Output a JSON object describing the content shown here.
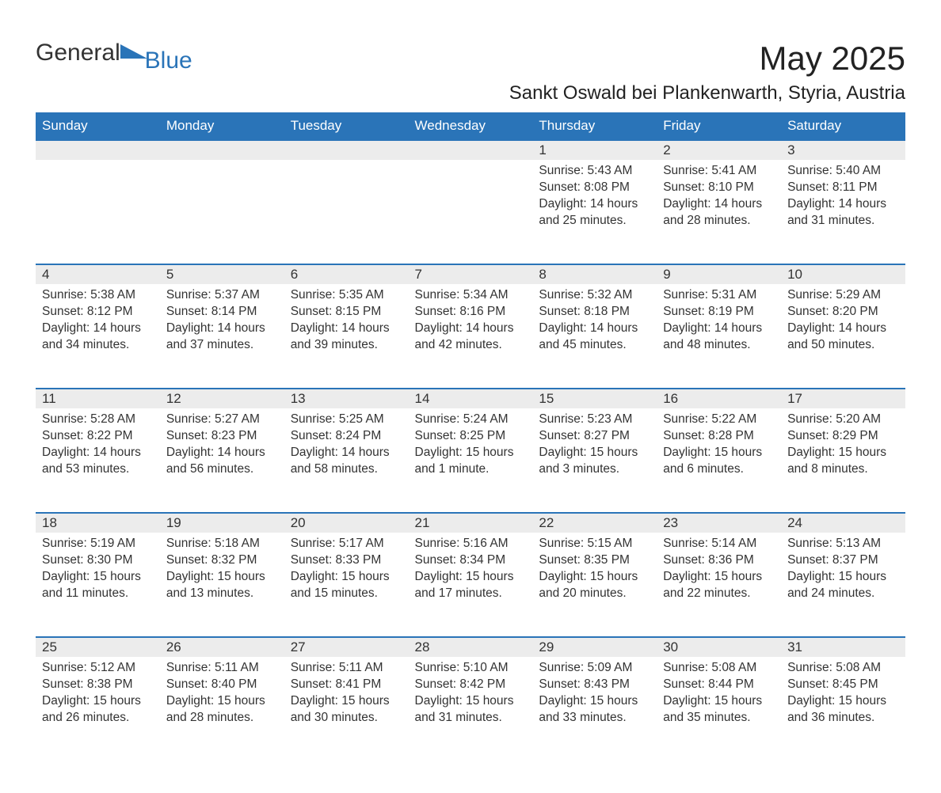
{
  "logo": {
    "general": "General",
    "blue": "Blue",
    "shape_color": "#2a74b8"
  },
  "title": "May 2025",
  "location": "Sankt Oswald bei Plankenwarth, Styria, Austria",
  "colors": {
    "header_bg": "#2a74b8",
    "header_text": "#ffffff",
    "daynum_bg": "#ececec",
    "body_text": "#333333",
    "page_bg": "#ffffff"
  },
  "weekdays": [
    "Sunday",
    "Monday",
    "Tuesday",
    "Wednesday",
    "Thursday",
    "Friday",
    "Saturday"
  ],
  "weeks": [
    [
      null,
      null,
      null,
      null,
      {
        "n": "1",
        "sunrise": "Sunrise: 5:43 AM",
        "sunset": "Sunset: 8:08 PM",
        "daylight": "Daylight: 14 hours and 25 minutes."
      },
      {
        "n": "2",
        "sunrise": "Sunrise: 5:41 AM",
        "sunset": "Sunset: 8:10 PM",
        "daylight": "Daylight: 14 hours and 28 minutes."
      },
      {
        "n": "3",
        "sunrise": "Sunrise: 5:40 AM",
        "sunset": "Sunset: 8:11 PM",
        "daylight": "Daylight: 14 hours and 31 minutes."
      }
    ],
    [
      {
        "n": "4",
        "sunrise": "Sunrise: 5:38 AM",
        "sunset": "Sunset: 8:12 PM",
        "daylight": "Daylight: 14 hours and 34 minutes."
      },
      {
        "n": "5",
        "sunrise": "Sunrise: 5:37 AM",
        "sunset": "Sunset: 8:14 PM",
        "daylight": "Daylight: 14 hours and 37 minutes."
      },
      {
        "n": "6",
        "sunrise": "Sunrise: 5:35 AM",
        "sunset": "Sunset: 8:15 PM",
        "daylight": "Daylight: 14 hours and 39 minutes."
      },
      {
        "n": "7",
        "sunrise": "Sunrise: 5:34 AM",
        "sunset": "Sunset: 8:16 PM",
        "daylight": "Daylight: 14 hours and 42 minutes."
      },
      {
        "n": "8",
        "sunrise": "Sunrise: 5:32 AM",
        "sunset": "Sunset: 8:18 PM",
        "daylight": "Daylight: 14 hours and 45 minutes."
      },
      {
        "n": "9",
        "sunrise": "Sunrise: 5:31 AM",
        "sunset": "Sunset: 8:19 PM",
        "daylight": "Daylight: 14 hours and 48 minutes."
      },
      {
        "n": "10",
        "sunrise": "Sunrise: 5:29 AM",
        "sunset": "Sunset: 8:20 PM",
        "daylight": "Daylight: 14 hours and 50 minutes."
      }
    ],
    [
      {
        "n": "11",
        "sunrise": "Sunrise: 5:28 AM",
        "sunset": "Sunset: 8:22 PM",
        "daylight": "Daylight: 14 hours and 53 minutes."
      },
      {
        "n": "12",
        "sunrise": "Sunrise: 5:27 AM",
        "sunset": "Sunset: 8:23 PM",
        "daylight": "Daylight: 14 hours and 56 minutes."
      },
      {
        "n": "13",
        "sunrise": "Sunrise: 5:25 AM",
        "sunset": "Sunset: 8:24 PM",
        "daylight": "Daylight: 14 hours and 58 minutes."
      },
      {
        "n": "14",
        "sunrise": "Sunrise: 5:24 AM",
        "sunset": "Sunset: 8:25 PM",
        "daylight": "Daylight: 15 hours and 1 minute."
      },
      {
        "n": "15",
        "sunrise": "Sunrise: 5:23 AM",
        "sunset": "Sunset: 8:27 PM",
        "daylight": "Daylight: 15 hours and 3 minutes."
      },
      {
        "n": "16",
        "sunrise": "Sunrise: 5:22 AM",
        "sunset": "Sunset: 8:28 PM",
        "daylight": "Daylight: 15 hours and 6 minutes."
      },
      {
        "n": "17",
        "sunrise": "Sunrise: 5:20 AM",
        "sunset": "Sunset: 8:29 PM",
        "daylight": "Daylight: 15 hours and 8 minutes."
      }
    ],
    [
      {
        "n": "18",
        "sunrise": "Sunrise: 5:19 AM",
        "sunset": "Sunset: 8:30 PM",
        "daylight": "Daylight: 15 hours and 11 minutes."
      },
      {
        "n": "19",
        "sunrise": "Sunrise: 5:18 AM",
        "sunset": "Sunset: 8:32 PM",
        "daylight": "Daylight: 15 hours and 13 minutes."
      },
      {
        "n": "20",
        "sunrise": "Sunrise: 5:17 AM",
        "sunset": "Sunset: 8:33 PM",
        "daylight": "Daylight: 15 hours and 15 minutes."
      },
      {
        "n": "21",
        "sunrise": "Sunrise: 5:16 AM",
        "sunset": "Sunset: 8:34 PM",
        "daylight": "Daylight: 15 hours and 17 minutes."
      },
      {
        "n": "22",
        "sunrise": "Sunrise: 5:15 AM",
        "sunset": "Sunset: 8:35 PM",
        "daylight": "Daylight: 15 hours and 20 minutes."
      },
      {
        "n": "23",
        "sunrise": "Sunrise: 5:14 AM",
        "sunset": "Sunset: 8:36 PM",
        "daylight": "Daylight: 15 hours and 22 minutes."
      },
      {
        "n": "24",
        "sunrise": "Sunrise: 5:13 AM",
        "sunset": "Sunset: 8:37 PM",
        "daylight": "Daylight: 15 hours and 24 minutes."
      }
    ],
    [
      {
        "n": "25",
        "sunrise": "Sunrise: 5:12 AM",
        "sunset": "Sunset: 8:38 PM",
        "daylight": "Daylight: 15 hours and 26 minutes."
      },
      {
        "n": "26",
        "sunrise": "Sunrise: 5:11 AM",
        "sunset": "Sunset: 8:40 PM",
        "daylight": "Daylight: 15 hours and 28 minutes."
      },
      {
        "n": "27",
        "sunrise": "Sunrise: 5:11 AM",
        "sunset": "Sunset: 8:41 PM",
        "daylight": "Daylight: 15 hours and 30 minutes."
      },
      {
        "n": "28",
        "sunrise": "Sunrise: 5:10 AM",
        "sunset": "Sunset: 8:42 PM",
        "daylight": "Daylight: 15 hours and 31 minutes."
      },
      {
        "n": "29",
        "sunrise": "Sunrise: 5:09 AM",
        "sunset": "Sunset: 8:43 PM",
        "daylight": "Daylight: 15 hours and 33 minutes."
      },
      {
        "n": "30",
        "sunrise": "Sunrise: 5:08 AM",
        "sunset": "Sunset: 8:44 PM",
        "daylight": "Daylight: 15 hours and 35 minutes."
      },
      {
        "n": "31",
        "sunrise": "Sunrise: 5:08 AM",
        "sunset": "Sunset: 8:45 PM",
        "daylight": "Daylight: 15 hours and 36 minutes."
      }
    ]
  ]
}
